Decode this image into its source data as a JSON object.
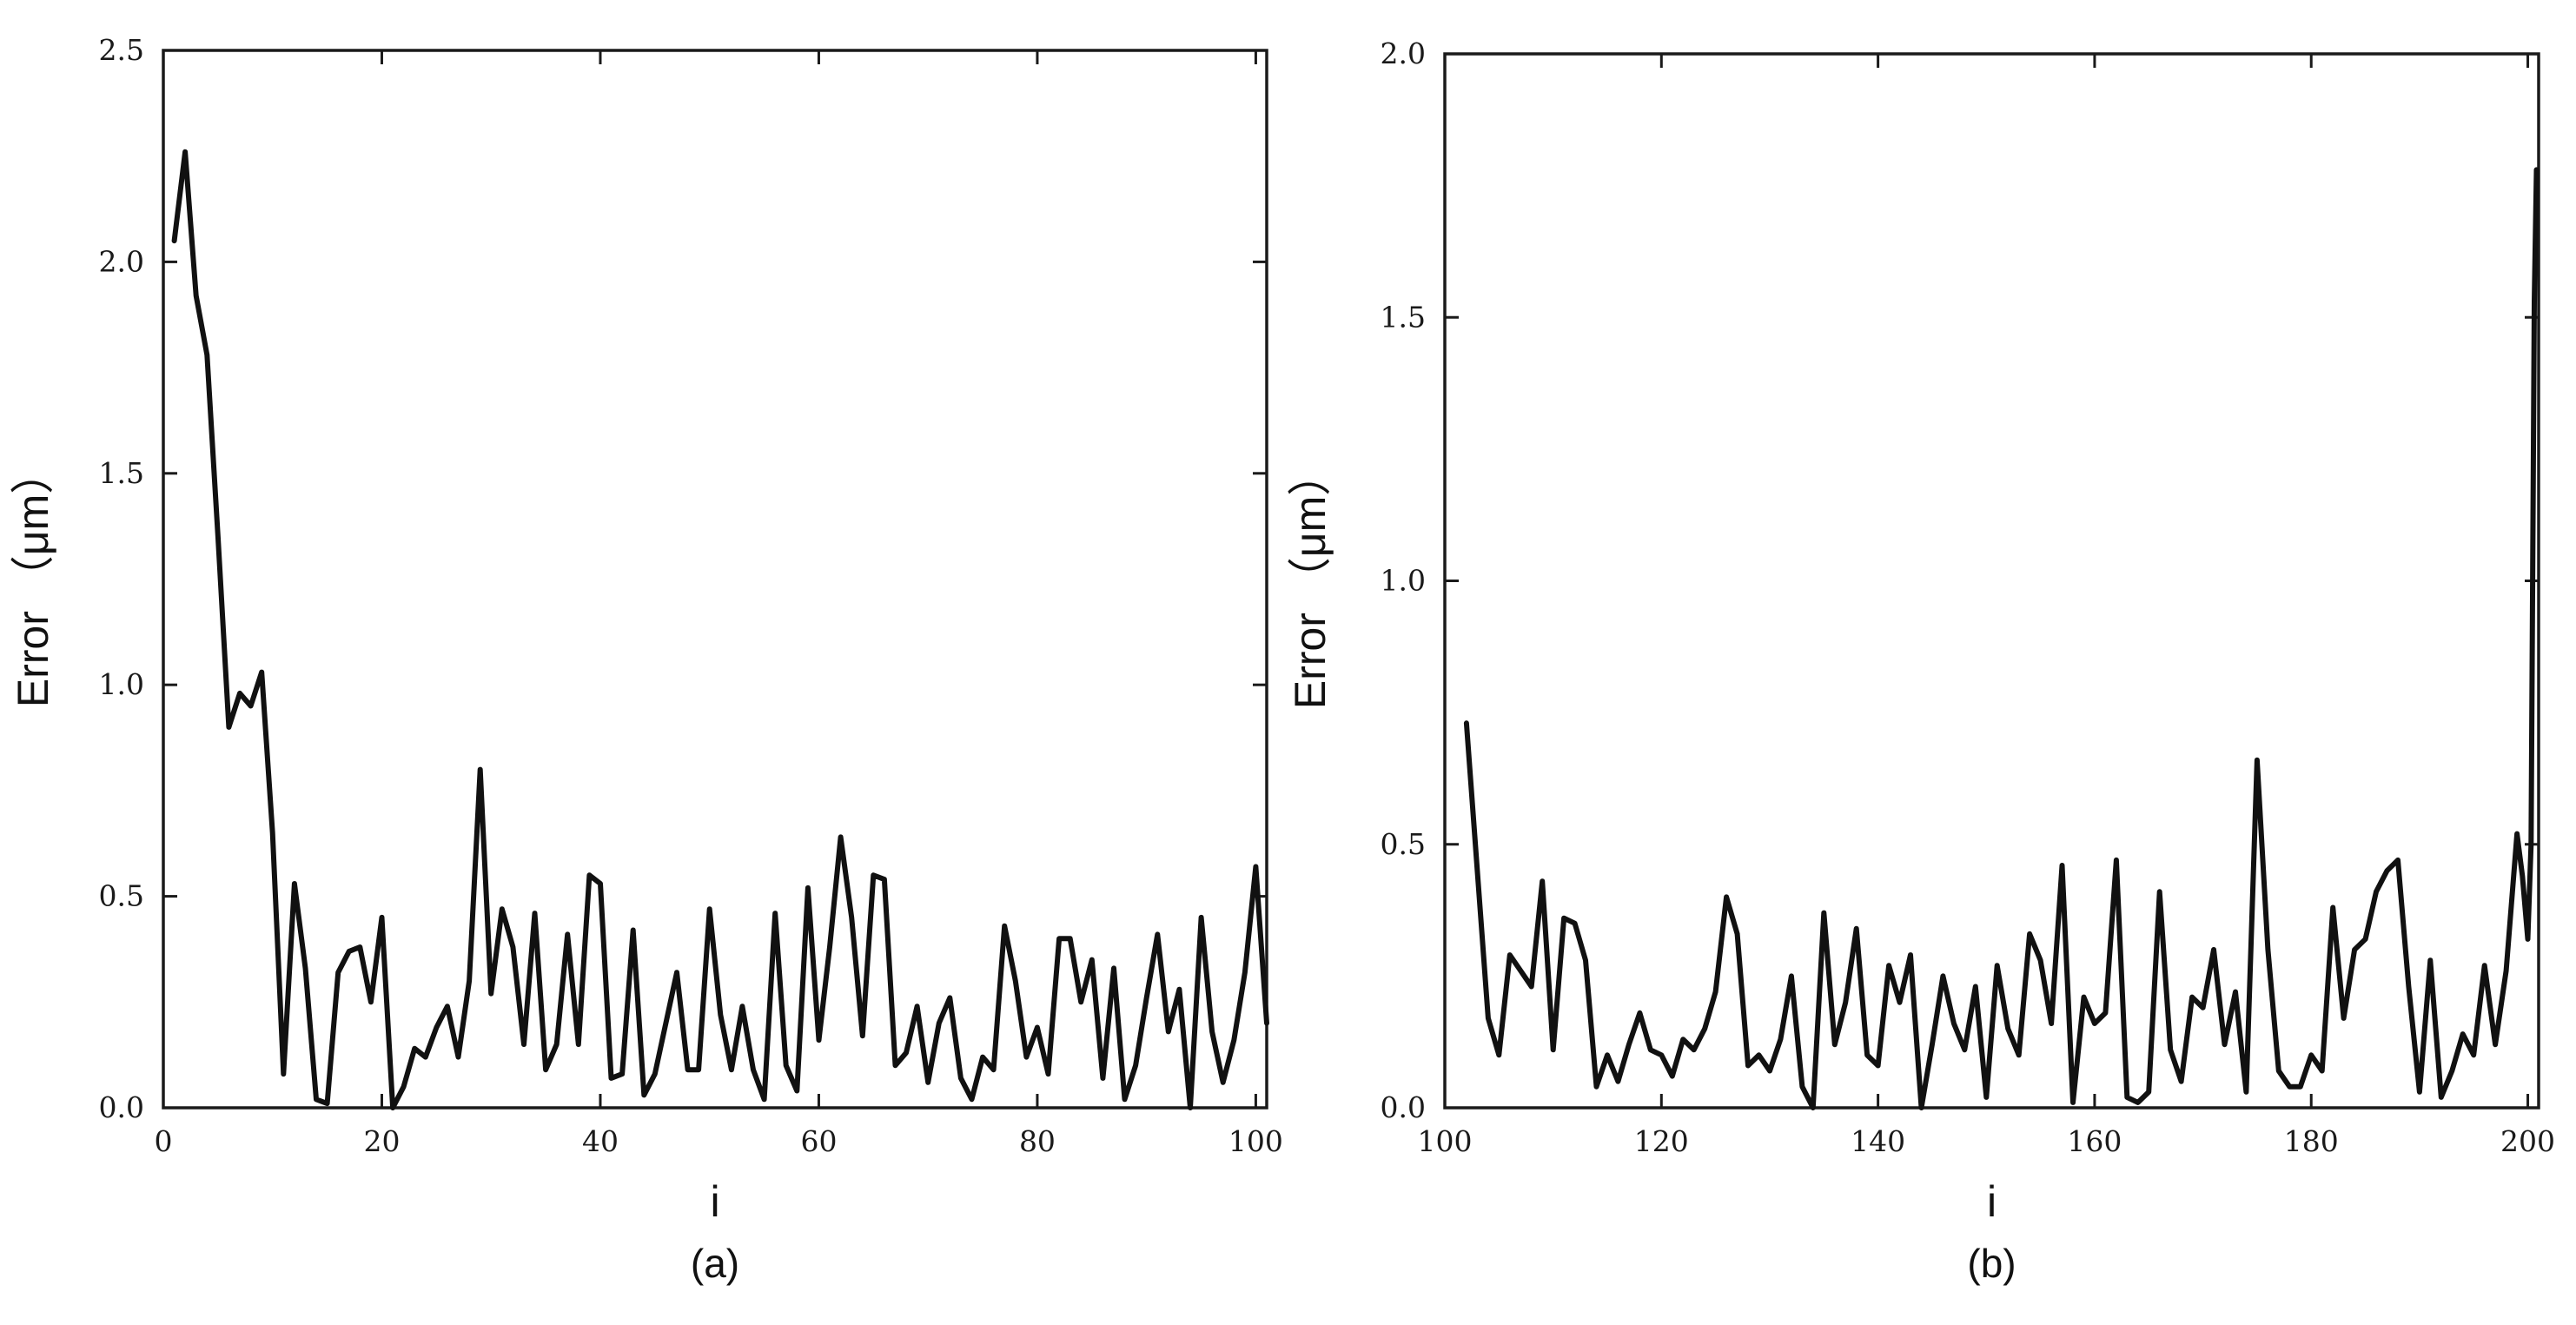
{
  "chart_data": [
    {
      "type": "line",
      "xlabel": "i",
      "ylabel": "Error （μm）",
      "panel_label": "(a)",
      "xlim": [
        0,
        101
      ],
      "ylim": [
        0,
        2.5
      ],
      "xticks": [
        0,
        20,
        40,
        60,
        80,
        100
      ],
      "xtick_labels": [
        "0",
        "20",
        "40",
        "60",
        "80",
        "100"
      ],
      "yticks": [
        0,
        0.5,
        1.0,
        1.5,
        2.0,
        2.5
      ],
      "ytick_labels": [
        "0.0",
        "0.5",
        "1.0",
        "1.5",
        "2.0",
        "2.5"
      ],
      "grid": false,
      "series": [
        {
          "color": "#111111",
          "x": [
            1,
            2,
            3,
            4,
            5,
            6,
            7,
            8,
            9,
            10,
            11,
            12,
            13,
            14,
            15,
            16,
            17,
            18,
            19,
            20,
            21,
            22,
            23,
            24,
            25,
            26,
            27,
            28,
            29,
            30,
            31,
            32,
            33,
            34,
            35,
            36,
            37,
            38,
            39,
            40,
            41,
            42,
            43,
            44,
            45,
            46,
            47,
            48,
            49,
            50,
            51,
            52,
            53,
            54,
            55,
            56,
            57,
            58,
            59,
            60,
            61,
            62,
            63,
            64,
            65,
            66,
            67,
            68,
            69,
            70,
            71,
            72,
            73,
            74,
            75,
            76,
            77,
            78,
            79,
            80,
            81,
            82,
            83,
            84,
            85,
            86,
            87,
            88,
            89,
            90,
            91,
            92,
            93,
            94,
            95,
            96,
            97,
            98,
            99,
            100,
            101
          ],
          "y": [
            2.05,
            2.26,
            1.92,
            1.78,
            1.35,
            0.9,
            0.98,
            0.95,
            1.03,
            0.65,
            0.08,
            0.53,
            0.33,
            0.02,
            0.01,
            0.32,
            0.37,
            0.38,
            0.25,
            0.45,
            0.0,
            0.05,
            0.14,
            0.12,
            0.19,
            0.24,
            0.12,
            0.3,
            0.8,
            0.27,
            0.47,
            0.38,
            0.15,
            0.46,
            0.09,
            0.15,
            0.41,
            0.15,
            0.55,
            0.53,
            0.07,
            0.08,
            0.42,
            0.03,
            0.08,
            0.2,
            0.32,
            0.09,
            0.09,
            0.47,
            0.22,
            0.09,
            0.24,
            0.09,
            0.02,
            0.46,
            0.1,
            0.04,
            0.52,
            0.16,
            0.38,
            0.64,
            0.45,
            0.17,
            0.55,
            0.54,
            0.1,
            0.13,
            0.24,
            0.06,
            0.2,
            0.26,
            0.07,
            0.02,
            0.12,
            0.09,
            0.43,
            0.3,
            0.12,
            0.19,
            0.08,
            0.4,
            0.4,
            0.25,
            0.35,
            0.07,
            0.33,
            0.02,
            0.1,
            0.26,
            0.41,
            0.18,
            0.28,
            0.0,
            0.45,
            0.18,
            0.06,
            0.16,
            0.32,
            0.57,
            0.2
          ]
        }
      ]
    },
    {
      "type": "line",
      "xlabel": "i",
      "ylabel": "Error （μm）",
      "panel_label": "(b)",
      "xlim": [
        100,
        201
      ],
      "ylim": [
        0,
        2.0
      ],
      "xticks": [
        100,
        120,
        140,
        160,
        180,
        200
      ],
      "xtick_labels": [
        "100",
        "120",
        "140",
        "160",
        "180",
        "200"
      ],
      "yticks": [
        0,
        0.5,
        1.0,
        1.5,
        2.0
      ],
      "ytick_labels": [
        "0.0",
        "0.5",
        "1.0",
        "1.5",
        "2.0"
      ],
      "grid": false,
      "series": [
        {
          "color": "#111111",
          "x": [
            102,
            103,
            104,
            105,
            106,
            107,
            108,
            109,
            110,
            111,
            112,
            113,
            114,
            115,
            116,
            117,
            118,
            119,
            120,
            121,
            122,
            123,
            124,
            125,
            126,
            127,
            128,
            129,
            130,
            131,
            132,
            133,
            134,
            135,
            136,
            137,
            138,
            139,
            140,
            141,
            142,
            143,
            144,
            145,
            146,
            147,
            148,
            149,
            150,
            151,
            152,
            153,
            154,
            155,
            156,
            157,
            158,
            159,
            160,
            161,
            162,
            163,
            164,
            165,
            166,
            167,
            168,
            169,
            170,
            171,
            172,
            173,
            174,
            175,
            176,
            177,
            178,
            179,
            180,
            181,
            182,
            183,
            184,
            185,
            186,
            187,
            188,
            189,
            190,
            191,
            192,
            193,
            194,
            195,
            196,
            197,
            198,
            199,
            199.5,
            200,
            200.3,
            200.6,
            200.8
          ],
          "y": [
            0.73,
            0.45,
            0.17,
            0.1,
            0.29,
            0.26,
            0.23,
            0.43,
            0.11,
            0.36,
            0.35,
            0.28,
            0.04,
            0.1,
            0.05,
            0.12,
            0.18,
            0.11,
            0.1,
            0.06,
            0.13,
            0.11,
            0.15,
            0.22,
            0.4,
            0.33,
            0.08,
            0.1,
            0.07,
            0.13,
            0.25,
            0.04,
            0.0,
            0.37,
            0.12,
            0.2,
            0.34,
            0.1,
            0.08,
            0.27,
            0.2,
            0.29,
            0.0,
            0.12,
            0.25,
            0.16,
            0.11,
            0.23,
            0.02,
            0.27,
            0.15,
            0.1,
            0.33,
            0.28,
            0.16,
            0.46,
            0.01,
            0.21,
            0.16,
            0.18,
            0.47,
            0.02,
            0.01,
            0.03,
            0.41,
            0.11,
            0.05,
            0.21,
            0.19,
            0.3,
            0.12,
            0.22,
            0.03,
            0.66,
            0.3,
            0.07,
            0.04,
            0.04,
            0.1,
            0.07,
            0.38,
            0.17,
            0.3,
            0.32,
            0.41,
            0.45,
            0.47,
            0.23,
            0.03,
            0.28,
            0.02,
            0.07,
            0.14,
            0.1,
            0.27,
            0.12,
            0.26,
            0.52,
            0.44,
            0.32,
            0.5,
            1.53,
            1.78
          ]
        }
      ]
    }
  ]
}
